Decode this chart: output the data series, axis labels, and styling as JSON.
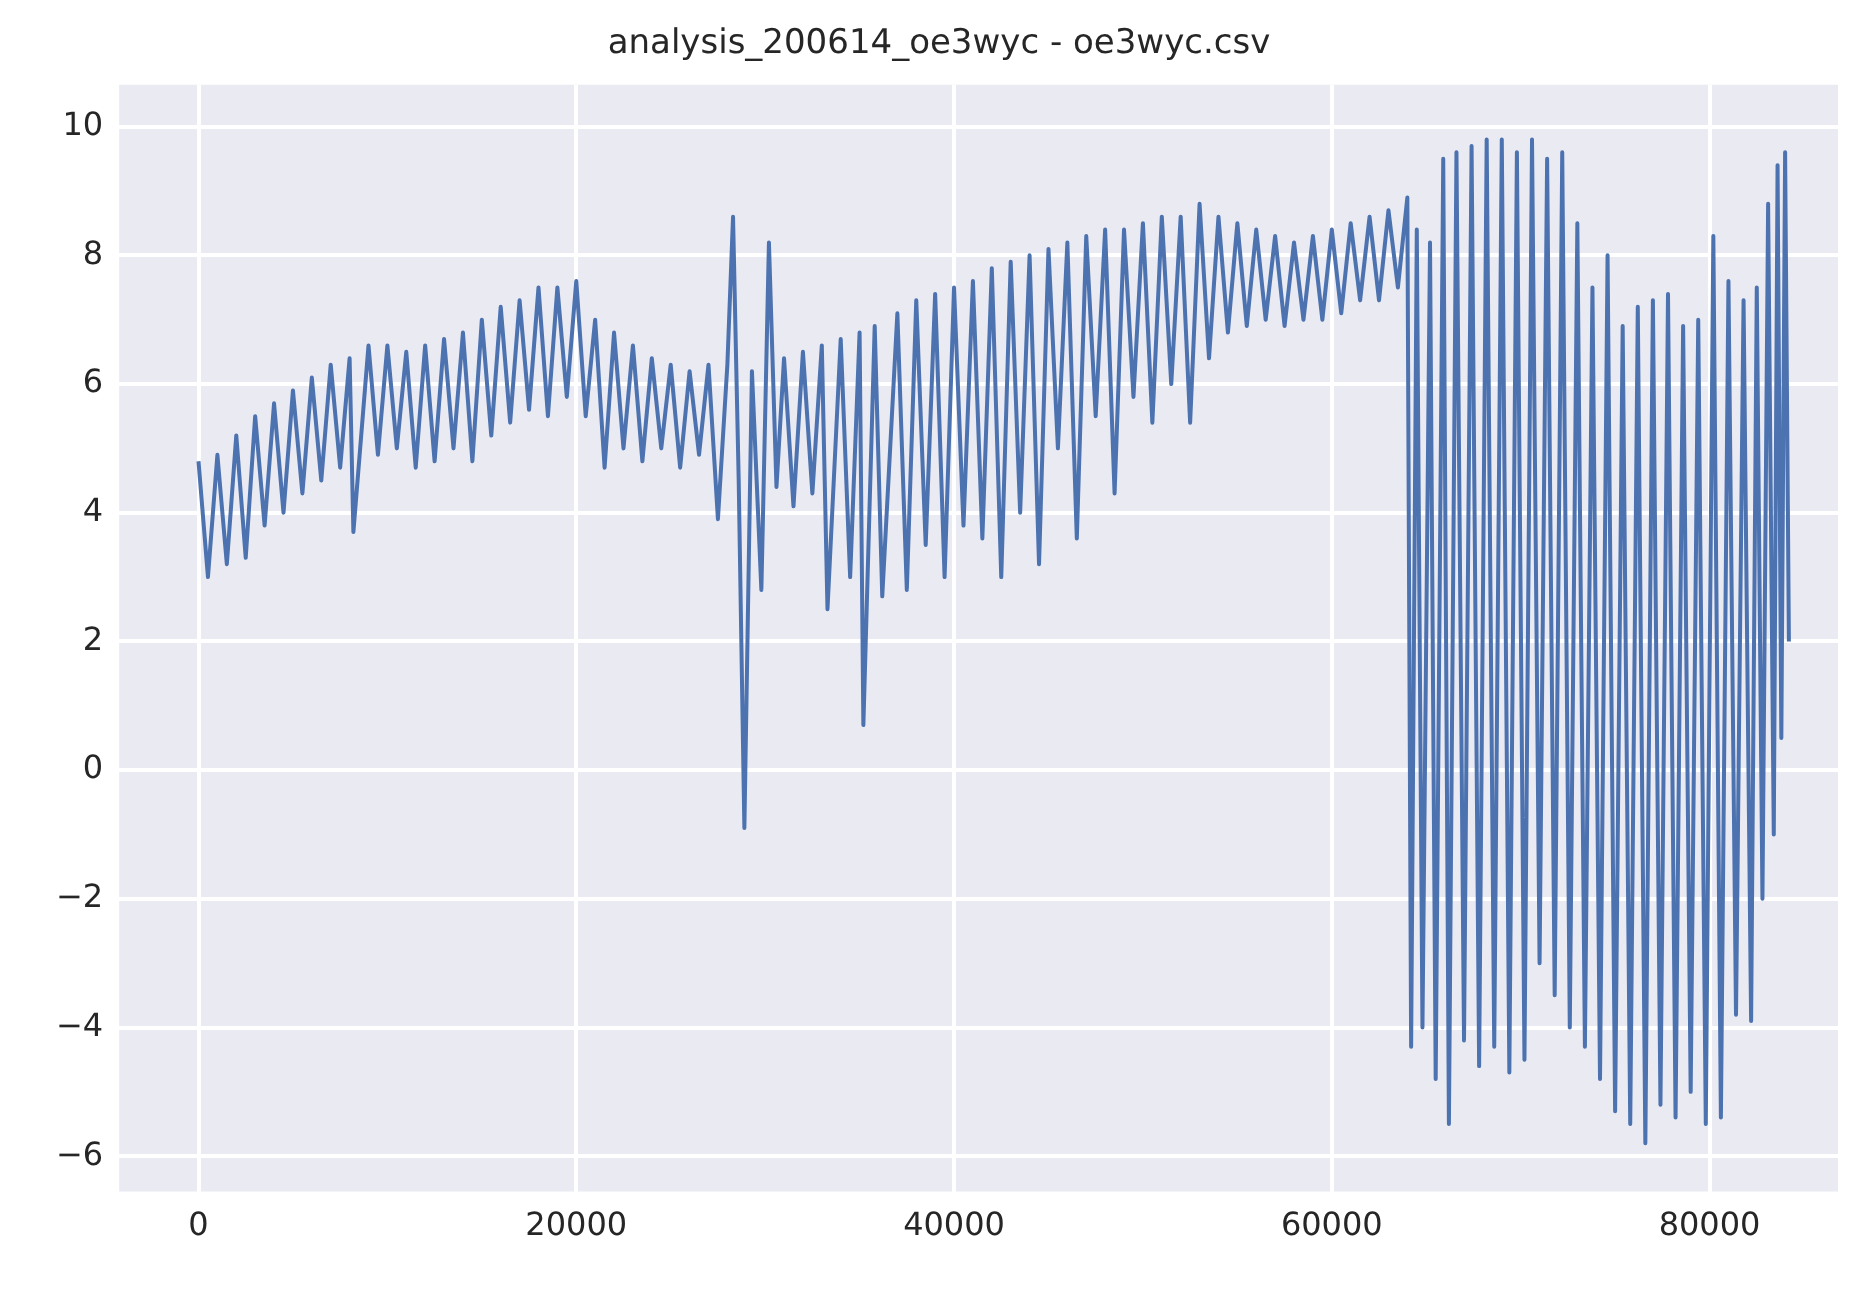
{
  "chart_data": {
    "type": "line",
    "title": "analysis_200614_oe3wyc - oe3wyc.csv",
    "x": [
      0,
      500,
      1000,
      1500,
      2000,
      2500,
      3000,
      3500,
      4000,
      4500,
      5000,
      5500,
      6000,
      6500,
      7000,
      7500,
      8000,
      8200,
      9000,
      9500,
      10000,
      10500,
      11000,
      11500,
      12000,
      12500,
      13000,
      13500,
      14000,
      14500,
      15000,
      15500,
      16000,
      16500,
      17000,
      17500,
      18000,
      18500,
      19000,
      19500,
      20000,
      20500,
      21000,
      21500,
      22000,
      22500,
      23000,
      23500,
      24000,
      24500,
      25000,
      25500,
      26000,
      26500,
      27000,
      27500,
      28000,
      28300,
      28600,
      28900,
      29300,
      29800,
      30200,
      30600,
      31000,
      31500,
      32000,
      32500,
      33000,
      33300,
      34000,
      34500,
      35000,
      35200,
      35800,
      36200,
      37000,
      37500,
      38000,
      38500,
      39000,
      39500,
      40000,
      40500,
      41000,
      41500,
      42000,
      42500,
      43000,
      43500,
      44000,
      44500,
      45000,
      45500,
      46000,
      46500,
      47000,
      47500,
      48000,
      48500,
      49000,
      49500,
      50000,
      50500,
      51000,
      51500,
      52000,
      52500,
      53000,
      53500,
      54000,
      54500,
      55000,
      55500,
      56000,
      56500,
      57000,
      57500,
      58000,
      58500,
      59000,
      59500,
      60000,
      60500,
      61000,
      61500,
      62000,
      62500,
      63000,
      63500,
      64000,
      64200,
      64500,
      64800,
      65200,
      65500,
      65900,
      66200,
      66600,
      67000,
      67400,
      67800,
      68200,
      68600,
      69000,
      69400,
      69800,
      70200,
      70600,
      71000,
      71400,
      71800,
      72200,
      72600,
      73000,
      73400,
      73800,
      74200,
      74600,
      75000,
      75400,
      75800,
      76200,
      76600,
      77000,
      77400,
      77800,
      78200,
      78600,
      79000,
      79400,
      79800,
      80200,
      80600,
      81000,
      81400,
      81800,
      82200,
      82500,
      82800,
      83100,
      83400,
      83600,
      83800,
      84000,
      84200
    ],
    "series": [
      {
        "color": "#4c72b0",
        "values": [
          4.8,
          3.0,
          4.9,
          3.2,
          5.2,
          3.3,
          5.5,
          3.8,
          5.7,
          4.0,
          5.9,
          4.3,
          6.1,
          4.5,
          6.3,
          4.7,
          6.4,
          3.7,
          6.6,
          4.9,
          6.6,
          5.0,
          6.5,
          4.7,
          6.6,
          4.8,
          6.7,
          5.0,
          6.8,
          4.8,
          7.0,
          5.2,
          7.2,
          5.4,
          7.3,
          5.6,
          7.5,
          5.5,
          7.5,
          5.8,
          7.6,
          5.5,
          7.0,
          4.7,
          6.8,
          5.0,
          6.6,
          4.8,
          6.4,
          5.0,
          6.3,
          4.7,
          6.2,
          4.9,
          6.3,
          3.9,
          6.3,
          8.6,
          4.5,
          -0.9,
          6.2,
          2.8,
          8.2,
          4.4,
          6.4,
          4.1,
          6.5,
          4.3,
          6.6,
          2.5,
          6.7,
          3.0,
          6.8,
          0.7,
          6.9,
          2.7,
          7.1,
          2.8,
          7.3,
          3.5,
          7.4,
          3.0,
          7.5,
          3.8,
          7.6,
          3.6,
          7.8,
          3.0,
          7.9,
          4.0,
          8.0,
          3.2,
          8.1,
          5.0,
          8.2,
          3.6,
          8.3,
          5.5,
          8.4,
          4.3,
          8.4,
          5.8,
          8.5,
          5.4,
          8.6,
          6.0,
          8.6,
          5.4,
          8.8,
          6.4,
          8.6,
          6.8,
          8.5,
          6.9,
          8.4,
          7.0,
          8.3,
          6.9,
          8.2,
          7.0,
          8.3,
          7.0,
          8.4,
          7.1,
          8.5,
          7.3,
          8.6,
          7.3,
          8.7,
          7.5,
          8.9,
          -4.3,
          8.4,
          -4.0,
          8.2,
          -4.8,
          9.5,
          -5.5,
          9.6,
          -4.2,
          9.7,
          -4.6,
          9.8,
          -4.3,
          9.8,
          -4.7,
          9.6,
          -4.5,
          9.8,
          -3.0,
          9.5,
          -3.5,
          9.6,
          -4.0,
          8.5,
          -4.3,
          7.5,
          -4.8,
          8.0,
          -5.3,
          6.9,
          -5.5,
          7.2,
          -5.8,
          7.3,
          -5.2,
          7.4,
          -5.4,
          6.9,
          -5.0,
          7.0,
          -5.5,
          8.3,
          -5.4,
          7.6,
          -3.8,
          7.3,
          -3.9,
          7.5,
          -2.0,
          8.8,
          -1.0,
          9.4,
          0.5,
          9.6,
          2.0
        ]
      }
    ],
    "xlim": [
      -4200,
      86800
    ],
    "xticks": [
      0,
      20000,
      40000,
      60000,
      80000
    ],
    "ylim": [
      -6.55,
      10.65
    ],
    "yticks": [
      -6,
      -4,
      -2,
      0,
      2,
      4,
      6,
      8,
      10
    ],
    "grid": true
  }
}
